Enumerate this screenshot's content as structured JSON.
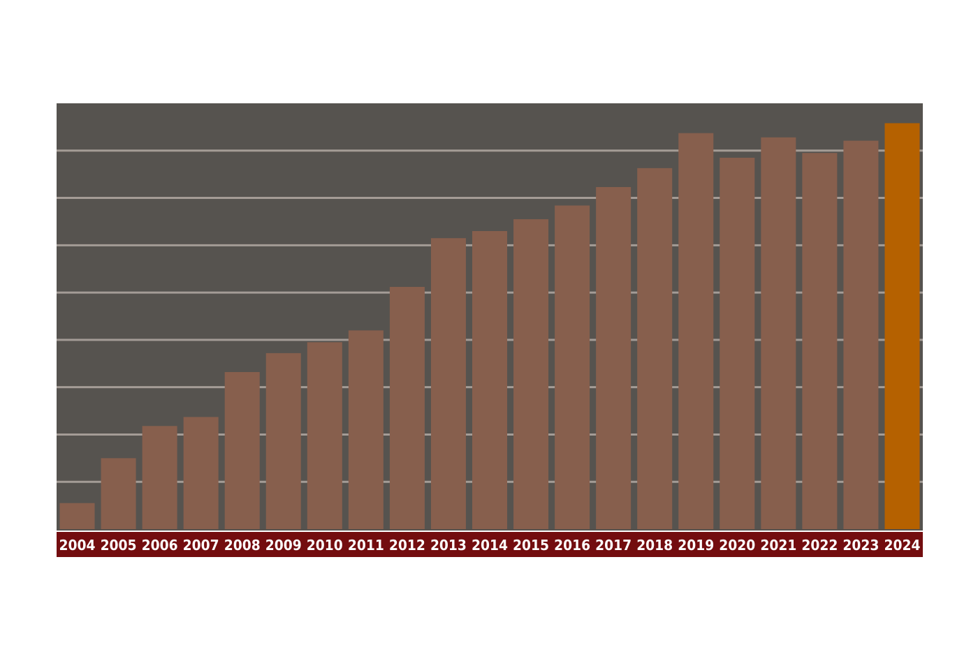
{
  "colors": {
    "plot_background": "#56534f",
    "gridline": "#a49c96",
    "bar": "#875f4d",
    "bar_highlight": "#b56100",
    "axis_band": "#730d0f",
    "tick_label": "#ffffff"
  },
  "chart_data": {
    "type": "bar",
    "title": "",
    "xlabel": "",
    "ylabel": "",
    "y_tick_labels_shown": false,
    "grid": true,
    "ylim": [
      0,
      9
    ],
    "gridlines_at": [
      1,
      2,
      3,
      4,
      5,
      6,
      7,
      8
    ],
    "highlighted_category": "2024",
    "categories": [
      "2004",
      "2005",
      "2006",
      "2007",
      "2008",
      "2009",
      "2010",
      "2011",
      "2012",
      "2013",
      "2014",
      "2015",
      "2016",
      "2017",
      "2018",
      "2019",
      "2020",
      "2021",
      "2022",
      "2023",
      "2024"
    ],
    "values": [
      0.55,
      1.5,
      2.18,
      2.37,
      3.32,
      3.72,
      3.95,
      4.2,
      5.12,
      6.15,
      6.3,
      6.55,
      6.84,
      7.23,
      7.63,
      8.37,
      7.85,
      8.28,
      7.95,
      8.21,
      8.58
    ]
  }
}
